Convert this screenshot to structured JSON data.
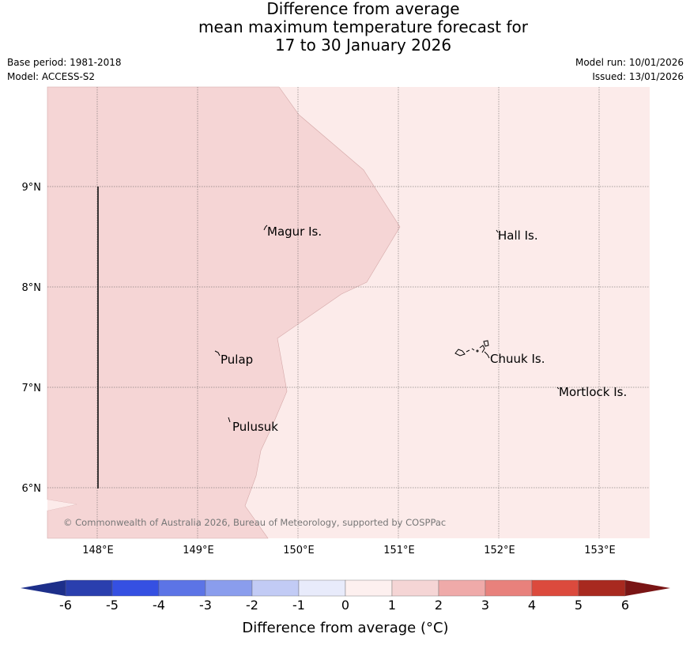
{
  "header": {
    "title_line1": "Difference from average",
    "title_line2": "mean maximum temperature forecast for",
    "title_line3": "17 to 30 January 2026",
    "base_period": "Base period: 1981-2018",
    "model": "Model: ACCESS-S2",
    "model_run": "Model run: 10/01/2026",
    "issued": "Issued: 13/01/2026"
  },
  "map": {
    "lon_range": [
      147.5,
      153.5
    ],
    "lat_range": [
      5.5,
      10.0
    ],
    "longitude_labels": [
      "148°E",
      "149°E",
      "150°E",
      "151°E",
      "152°E",
      "153°E"
    ],
    "latitude_labels": [
      "9°N",
      "8°N",
      "7°N",
      "6°N"
    ],
    "grid": true,
    "places": [
      {
        "name": "Magur Is.",
        "lon": 149.67,
        "lat": 8.55
      },
      {
        "name": "Hall Is.",
        "lon": 151.98,
        "lat": 8.52
      },
      {
        "name": "Pulap",
        "lon": 149.17,
        "lat": 7.33
      },
      {
        "name": "Chuuk Is.",
        "lon": 151.85,
        "lat": 7.3
      },
      {
        "name": "Mortlock Is.",
        "lon": 152.58,
        "lat": 6.97
      },
      {
        "name": "Pulusuk",
        "lon": 149.3,
        "lat": 6.67
      }
    ],
    "region_colors": {
      "anomaly_1_to_2": "#f5d5d5",
      "anomaly_0_to_1": "#fcebea"
    },
    "copyright": "© Commonwealth of Australia 2026, Bureau of Meteorology, supported by COSPPac"
  },
  "colorbar": {
    "title": "Difference from average (°C)",
    "ticks": [
      "-6",
      "-5",
      "-4",
      "-3",
      "-2",
      "-1",
      "0",
      "1",
      "2",
      "3",
      "4",
      "5",
      "6"
    ],
    "under_color": "#1d2f8a",
    "over_color": "#7a1515",
    "colors": [
      "#2a3fae",
      "#3550e2",
      "#5c74e6",
      "#8a9ded",
      "#c2cbf5",
      "#e8ebfb",
      "#fdf0ef",
      "#f5d5d5",
      "#efaaa9",
      "#e8817c",
      "#dc4a3d",
      "#a8291f"
    ]
  },
  "chart_data": {
    "type": "heatmap",
    "title": "Difference from average mean maximum temperature forecast for 17 to 30 January 2026",
    "xlabel": "",
    "ylabel": "",
    "x_range": [
      147.5,
      153.5
    ],
    "y_range": [
      5.5,
      10.0
    ],
    "regions": [
      {
        "anomaly_range": [
          1,
          2
        ],
        "area": "western portion (west of ~150–151°E)"
      },
      {
        "anomaly_range": [
          0,
          1
        ],
        "area": "eastern portion"
      }
    ],
    "colorbar_label": "Difference from average (°C)"
  }
}
